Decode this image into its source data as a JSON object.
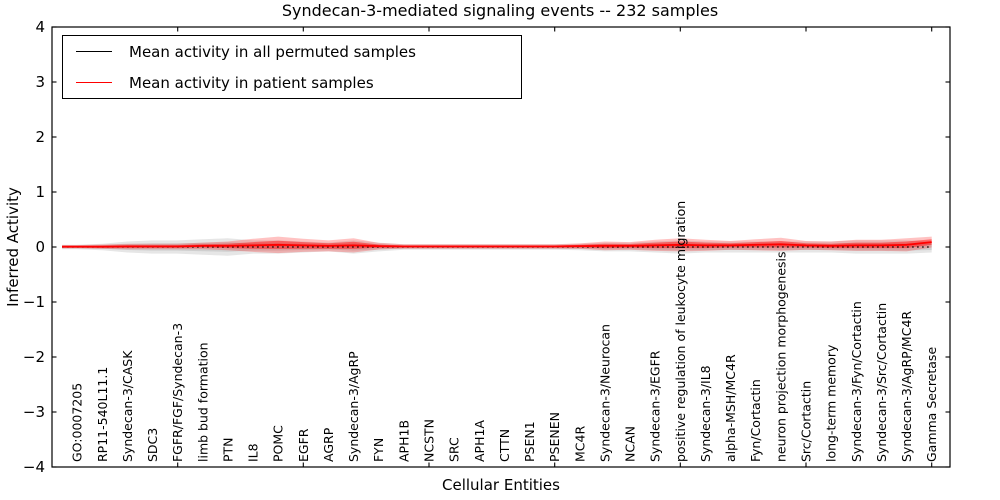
{
  "figure": {
    "title": "Syndecan-3-mediated signaling events -- 232 samples",
    "xlabel": "Cellular Entities",
    "ylabel": "Inferred Activity"
  },
  "legend": {
    "position": "upper left",
    "entries": [
      {
        "label": "Mean activity in all permuted samples",
        "color": "#000000"
      },
      {
        "label": "Mean activity in patient samples",
        "color": "#ff0000"
      }
    ]
  },
  "chart_data": {
    "type": "line",
    "title": "Syndecan-3-mediated signaling events -- 232 samples",
    "xlabel": "Cellular Entities",
    "ylabel": "Inferred Activity",
    "ylim": [
      -4,
      4
    ],
    "xlim": [
      0,
      35.73
    ],
    "yticks": [
      -4,
      -3,
      -2,
      -1,
      0,
      1,
      2,
      3,
      4
    ],
    "ytick_labels": [
      "−4",
      "−3",
      "−2",
      "−1",
      "0",
      "1",
      "2",
      "3",
      "4"
    ],
    "xtick_positions": [
      5,
      10,
      15,
      20,
      25,
      30,
      35
    ],
    "grid": false,
    "legend_position": "upper left",
    "categories": [
      "GO:0007205",
      "RP11-540L11.1",
      "Syndecan-3/CASK",
      "SDC3",
      "FGFR/FGF/Syndecan-3",
      "limb bud formation",
      "PTN",
      "IL8",
      "POMC",
      "EGFR",
      "AGRP",
      "Syndecan-3/AgRP",
      "FYN",
      "APH1B",
      "NCSTN",
      "SRC",
      "APH1A",
      "CTTN",
      "PSEN1",
      "PSENEN",
      "MC4R",
      "Syndecan-3/Neurocan",
      "NCAN",
      "Syndecan-3/EGFR",
      "positive regulation of leukocyte migration",
      "Syndecan-3/IL8",
      "alpha-MSH/MC4R",
      "Fyn/Cortactin",
      "neuron projection morphogenesis",
      "Src/Cortactin",
      "long-term memory",
      "Syndecan-3/Fyn/Cortactin",
      "Syndecan-3/Src/Cortactin",
      "Syndecan-3/AgRP/MC4R",
      "Gamma Secretase"
    ],
    "series": [
      {
        "name": "Mean activity in all permuted samples",
        "color": "#000000",
        "line_style": "dotted",
        "values": [
          0,
          0,
          0,
          0,
          0,
          0,
          0,
          0,
          0,
          0,
          0,
          0,
          0,
          0,
          0,
          0,
          0,
          0,
          0,
          0,
          0,
          0,
          0,
          0,
          0,
          0,
          0,
          0,
          0,
          0,
          0,
          0,
          0,
          0,
          0
        ],
        "band": [
          0.04,
          0.06,
          0.1,
          0.12,
          0.12,
          0.14,
          0.16,
          0.12,
          0.12,
          0.1,
          0.08,
          0.12,
          0.08,
          0.05,
          0.05,
          0.05,
          0.05,
          0.05,
          0.05,
          0.05,
          0.06,
          0.08,
          0.08,
          0.1,
          0.12,
          0.1,
          0.1,
          0.1,
          0.1,
          0.1,
          0.1,
          0.12,
          0.12,
          0.12,
          0.1
        ],
        "band_color": "#808080"
      },
      {
        "name": "Mean activity in patient samples",
        "color": "#ff0000",
        "line_style": "solid",
        "values": [
          0.005,
          0.005,
          0.01,
          0.01,
          0.01,
          0.02,
          0.02,
          0.03,
          0.04,
          0.03,
          0.02,
          0.03,
          0.015,
          0.01,
          0.01,
          0.01,
          0.01,
          0.01,
          0.01,
          0.01,
          0.015,
          0.02,
          0.02,
          0.03,
          0.04,
          0.03,
          0.03,
          0.04,
          0.05,
          0.03,
          0.02,
          0.03,
          0.03,
          0.04,
          0.09
        ],
        "band": [
          0.03,
          0.04,
          0.05,
          0.05,
          0.05,
          0.06,
          0.08,
          0.12,
          0.15,
          0.12,
          0.1,
          0.13,
          0.06,
          0.04,
          0.04,
          0.04,
          0.04,
          0.04,
          0.04,
          0.04,
          0.05,
          0.08,
          0.07,
          0.1,
          0.12,
          0.1,
          0.08,
          0.1,
          0.12,
          0.08,
          0.08,
          0.1,
          0.1,
          0.12,
          0.1
        ],
        "band_color": "#ff0000"
      }
    ]
  }
}
